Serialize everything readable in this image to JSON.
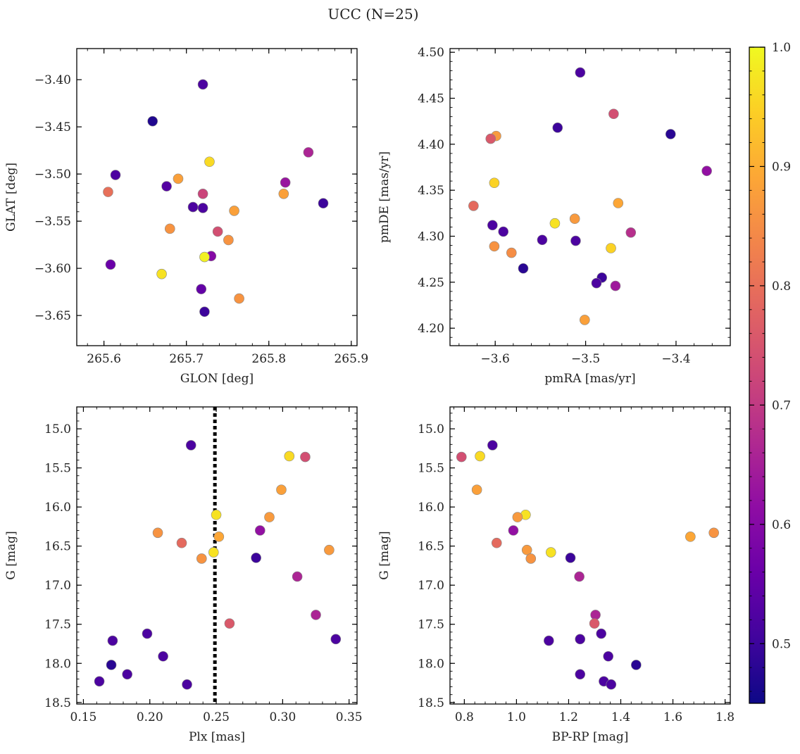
{
  "figure": {
    "suptitle": "UCC (N=25)"
  },
  "colorbar": {
    "min": 0.45,
    "max": 1.0,
    "ticks": [
      0.5,
      0.6,
      0.7,
      0.8,
      0.9,
      1.0
    ],
    "tick_labels": [
      "0.5",
      "0.6",
      "0.7",
      "0.8",
      "0.9",
      "1.0"
    ],
    "colormap": "plasma"
  },
  "chart_data": [
    {
      "type": "scatter",
      "id": "glon-glat",
      "xlabel": "GLON [deg]",
      "ylabel": "GLAT [deg]",
      "xlim": [
        265.567,
        265.907
      ],
      "ylim": [
        -3.682,
        -3.367
      ],
      "yinvert": false,
      "xticks": [
        265.6,
        265.7,
        265.8,
        265.9
      ],
      "xtick_labels": [
        "265.6",
        "265.7",
        "265.8",
        "265.9"
      ],
      "yticks": [
        -3.4,
        -3.45,
        -3.5,
        -3.55,
        -3.6,
        -3.65
      ],
      "ytick_labels": [
        "−3.40",
        "−3.45",
        "−3.50",
        "−3.55",
        "−3.60",
        "−3.65"
      ],
      "points": [
        {
          "x": 265.72,
          "y": -3.405,
          "c": 0.52
        },
        {
          "x": 265.659,
          "y": -3.444,
          "c": 0.47
        },
        {
          "x": 265.848,
          "y": -3.477,
          "c": 0.66
        },
        {
          "x": 265.728,
          "y": -3.487,
          "c": 0.96
        },
        {
          "x": 265.614,
          "y": -3.501,
          "c": 0.52
        },
        {
          "x": 265.69,
          "y": -3.505,
          "c": 0.88
        },
        {
          "x": 265.82,
          "y": -3.509,
          "c": 0.63
        },
        {
          "x": 265.676,
          "y": -3.513,
          "c": 0.53
        },
        {
          "x": 265.605,
          "y": -3.519,
          "c": 0.8
        },
        {
          "x": 265.818,
          "y": -3.521,
          "c": 0.88
        },
        {
          "x": 265.72,
          "y": -3.521,
          "c": 0.72
        },
        {
          "x": 265.866,
          "y": -3.531,
          "c": 0.5
        },
        {
          "x": 265.708,
          "y": -3.535,
          "c": 0.52
        },
        {
          "x": 265.72,
          "y": -3.536,
          "c": 0.52
        },
        {
          "x": 265.758,
          "y": -3.539,
          "c": 0.88
        },
        {
          "x": 265.68,
          "y": -3.558,
          "c": 0.86
        },
        {
          "x": 265.738,
          "y": -3.561,
          "c": 0.74
        },
        {
          "x": 265.751,
          "y": -3.57,
          "c": 0.86
        },
        {
          "x": 265.73,
          "y": -3.587,
          "c": 0.6
        },
        {
          "x": 265.722,
          "y": -3.588,
          "c": 0.99
        },
        {
          "x": 265.608,
          "y": -3.596,
          "c": 0.56
        },
        {
          "x": 265.67,
          "y": -3.606,
          "c": 0.97
        },
        {
          "x": 265.718,
          "y": -3.622,
          "c": 0.55
        },
        {
          "x": 265.764,
          "y": -3.632,
          "c": 0.86
        },
        {
          "x": 265.722,
          "y": -3.646,
          "c": 0.5
        }
      ]
    },
    {
      "type": "scatter",
      "id": "pmra-pmde",
      "xlabel": "pmRA [mas/yr]",
      "ylabel": "pmDE [mas/yr]",
      "xlim": [
        -3.65,
        -3.34
      ],
      "ylim": [
        4.181,
        4.504
      ],
      "yinvert": false,
      "xticks": [
        -3.6,
        -3.5,
        -3.4
      ],
      "xtick_labels": [
        "−3.6",
        "−3.5",
        "−3.4"
      ],
      "yticks": [
        4.2,
        4.25,
        4.3,
        4.35,
        4.4,
        4.45,
        4.5
      ],
      "ytick_labels": [
        "4.20",
        "4.25",
        "4.30",
        "4.35",
        "4.40",
        "4.45",
        "4.50"
      ],
      "points": [
        {
          "x": -3.506,
          "y": 4.478,
          "c": 0.52
        },
        {
          "x": -3.469,
          "y": 4.433,
          "c": 0.74
        },
        {
          "x": -3.531,
          "y": 4.418,
          "c": 0.5
        },
        {
          "x": -3.406,
          "y": 4.411,
          "c": 0.48
        },
        {
          "x": -3.599,
          "y": 4.409,
          "c": 0.87
        },
        {
          "x": -3.605,
          "y": 4.406,
          "c": 0.76
        },
        {
          "x": -3.366,
          "y": 4.371,
          "c": 0.62
        },
        {
          "x": -3.601,
          "y": 4.358,
          "c": 0.95
        },
        {
          "x": -3.464,
          "y": 4.336,
          "c": 0.89
        },
        {
          "x": -3.624,
          "y": 4.333,
          "c": 0.79
        },
        {
          "x": -3.512,
          "y": 4.319,
          "c": 0.87
        },
        {
          "x": -3.534,
          "y": 4.314,
          "c": 0.97
        },
        {
          "x": -3.603,
          "y": 4.312,
          "c": 0.52
        },
        {
          "x": -3.591,
          "y": 4.305,
          "c": 0.52
        },
        {
          "x": -3.45,
          "y": 4.304,
          "c": 0.68
        },
        {
          "x": -3.548,
          "y": 4.296,
          "c": 0.52
        },
        {
          "x": -3.511,
          "y": 4.295,
          "c": 0.52
        },
        {
          "x": -3.601,
          "y": 4.289,
          "c": 0.86
        },
        {
          "x": -3.472,
          "y": 4.287,
          "c": 0.95
        },
        {
          "x": -3.582,
          "y": 4.282,
          "c": 0.85
        },
        {
          "x": -3.569,
          "y": 4.265,
          "c": 0.48
        },
        {
          "x": -3.482,
          "y": 4.255,
          "c": 0.5
        },
        {
          "x": -3.488,
          "y": 4.249,
          "c": 0.52
        },
        {
          "x": -3.467,
          "y": 4.246,
          "c": 0.64
        },
        {
          "x": -3.501,
          "y": 4.209,
          "c": 0.88
        }
      ]
    },
    {
      "type": "scatter",
      "id": "plx-g",
      "xlabel": "Plx [mas]",
      "ylabel": "G [mag]",
      "xlim": [
        0.145,
        0.356
      ],
      "ylim": [
        14.72,
        18.52
      ],
      "yinvert": true,
      "xticks": [
        0.15,
        0.2,
        0.25,
        0.3,
        0.35
      ],
      "xtick_labels": [
        "0.15",
        "0.20",
        "0.25",
        "0.30",
        "0.35"
      ],
      "yticks": [
        15.0,
        15.5,
        16.0,
        16.5,
        17.0,
        17.5,
        18.0,
        18.5
      ],
      "ytick_labels": [
        "15.0",
        "15.5",
        "16.0",
        "16.5",
        "17.0",
        "17.5",
        "18.0",
        "18.5"
      ],
      "vline": {
        "x": 0.249,
        "style": "dotted"
      },
      "points": [
        {
          "x": 0.231,
          "y": 15.21,
          "c": 0.52
        },
        {
          "x": 0.305,
          "y": 15.35,
          "c": 0.96
        },
        {
          "x": 0.317,
          "y": 15.36,
          "c": 0.74
        },
        {
          "x": 0.299,
          "y": 15.78,
          "c": 0.88
        },
        {
          "x": 0.25,
          "y": 16.1,
          "c": 0.97
        },
        {
          "x": 0.29,
          "y": 16.13,
          "c": 0.87
        },
        {
          "x": 0.283,
          "y": 16.3,
          "c": 0.62
        },
        {
          "x": 0.206,
          "y": 16.33,
          "c": 0.86
        },
        {
          "x": 0.252,
          "y": 16.38,
          "c": 0.89
        },
        {
          "x": 0.224,
          "y": 16.46,
          "c": 0.79
        },
        {
          "x": 0.335,
          "y": 16.55,
          "c": 0.87
        },
        {
          "x": 0.248,
          "y": 16.58,
          "c": 0.97
        },
        {
          "x": 0.239,
          "y": 16.66,
          "c": 0.86
        },
        {
          "x": 0.28,
          "y": 16.65,
          "c": 0.5
        },
        {
          "x": 0.311,
          "y": 16.89,
          "c": 0.66
        },
        {
          "x": 0.325,
          "y": 17.38,
          "c": 0.66
        },
        {
          "x": 0.26,
          "y": 17.49,
          "c": 0.76
        },
        {
          "x": 0.198,
          "y": 17.62,
          "c": 0.52
        },
        {
          "x": 0.34,
          "y": 17.69,
          "c": 0.52
        },
        {
          "x": 0.172,
          "y": 17.71,
          "c": 0.52
        },
        {
          "x": 0.21,
          "y": 17.91,
          "c": 0.52
        },
        {
          "x": 0.171,
          "y": 18.02,
          "c": 0.48
        },
        {
          "x": 0.183,
          "y": 18.14,
          "c": 0.52
        },
        {
          "x": 0.162,
          "y": 18.23,
          "c": 0.52
        },
        {
          "x": 0.228,
          "y": 18.27,
          "c": 0.52
        }
      ]
    },
    {
      "type": "scatter",
      "id": "bprp-g",
      "xlabel": "BP-RP [mag]",
      "ylabel": "G [mag]",
      "xlim": [
        0.745,
        1.82
      ],
      "ylim": [
        14.72,
        18.52
      ],
      "yinvert": true,
      "xticks": [
        0.8,
        1.0,
        1.2,
        1.4,
        1.6,
        1.8
      ],
      "xtick_labels": [
        "0.8",
        "1.0",
        "1.2",
        "1.4",
        "1.6",
        "1.8"
      ],
      "yticks": [
        15.0,
        15.5,
        16.0,
        16.5,
        17.0,
        17.5,
        18.0,
        18.5
      ],
      "ytick_labels": [
        "15.0",
        "15.5",
        "16.0",
        "16.5",
        "17.0",
        "17.5",
        "18.0",
        "18.5"
      ],
      "points": [
        {
          "x": 0.908,
          "y": 15.21,
          "c": 0.52
        },
        {
          "x": 0.789,
          "y": 15.36,
          "c": 0.74
        },
        {
          "x": 0.86,
          "y": 15.35,
          "c": 0.96
        },
        {
          "x": 0.848,
          "y": 15.78,
          "c": 0.88
        },
        {
          "x": 1.035,
          "y": 16.1,
          "c": 0.97
        },
        {
          "x": 1.004,
          "y": 16.13,
          "c": 0.87
        },
        {
          "x": 0.988,
          "y": 16.3,
          "c": 0.62
        },
        {
          "x": 1.757,
          "y": 16.33,
          "c": 0.86
        },
        {
          "x": 1.667,
          "y": 16.38,
          "c": 0.89
        },
        {
          "x": 0.924,
          "y": 16.46,
          "c": 0.79
        },
        {
          "x": 1.04,
          "y": 16.55,
          "c": 0.87
        },
        {
          "x": 1.132,
          "y": 16.58,
          "c": 0.97
        },
        {
          "x": 1.055,
          "y": 16.66,
          "c": 0.86
        },
        {
          "x": 1.207,
          "y": 16.65,
          "c": 0.5
        },
        {
          "x": 1.241,
          "y": 16.89,
          "c": 0.66
        },
        {
          "x": 1.303,
          "y": 17.38,
          "c": 0.66
        },
        {
          "x": 1.299,
          "y": 17.49,
          "c": 0.76
        },
        {
          "x": 1.325,
          "y": 17.62,
          "c": 0.52
        },
        {
          "x": 1.244,
          "y": 17.69,
          "c": 0.52
        },
        {
          "x": 1.124,
          "y": 17.71,
          "c": 0.52
        },
        {
          "x": 1.352,
          "y": 17.91,
          "c": 0.52
        },
        {
          "x": 1.459,
          "y": 18.02,
          "c": 0.48
        },
        {
          "x": 1.244,
          "y": 18.14,
          "c": 0.52
        },
        {
          "x": 1.335,
          "y": 18.23,
          "c": 0.52
        },
        {
          "x": 1.363,
          "y": 18.27,
          "c": 0.52
        }
      ]
    }
  ]
}
